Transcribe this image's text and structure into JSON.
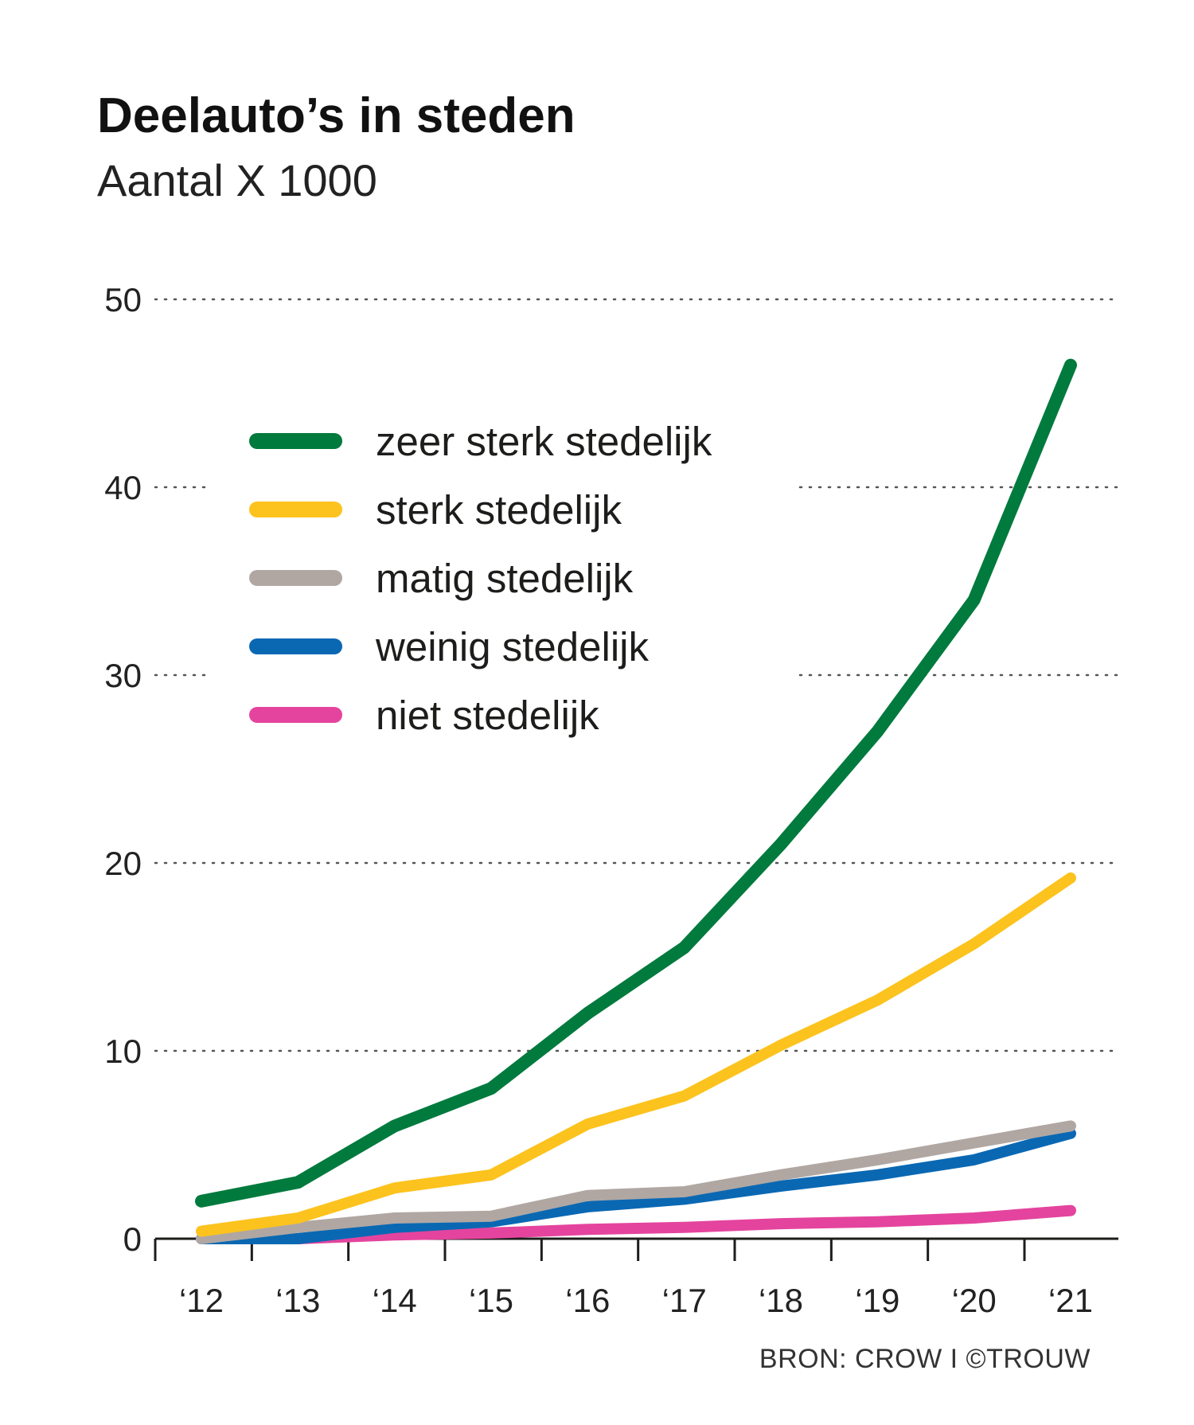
{
  "chart_data": {
    "type": "line",
    "title": "Deelauto’s in steden",
    "subtitle": "Aantal X 1000",
    "source": "BRON: CROW I ©TROUW",
    "xlabel": "",
    "ylabel": "",
    "ylim": [
      0,
      50
    ],
    "y_ticks": [
      "0",
      "10",
      "20",
      "30",
      "40",
      "50"
    ],
    "categories": [
      "‘12",
      "‘13",
      "‘14",
      "‘15",
      "‘16",
      "‘17",
      "‘18",
      "‘19",
      "‘20",
      "‘21"
    ],
    "grid": "horizontal dotted",
    "legend_position": "top-left",
    "series": [
      {
        "name": "zeer sterk stedelijk",
        "color": "#007a3d",
        "values": [
          2.0,
          3.0,
          6.0,
          8.0,
          12.0,
          15.5,
          21.0,
          27.0,
          34.0,
          46.5
        ]
      },
      {
        "name": "sterk stedelijk",
        "color": "#fcc31e",
        "values": [
          0.4,
          1.1,
          2.7,
          3.4,
          6.1,
          7.6,
          10.3,
          12.7,
          15.7,
          19.2
        ]
      },
      {
        "name": "matig stedelijk",
        "color": "#b0a7a3",
        "values": [
          0.0,
          0.6,
          1.1,
          1.2,
          2.3,
          2.5,
          3.4,
          4.2,
          5.1,
          6.0
        ]
      },
      {
        "name": "weinig stedelijk",
        "color": "#0a68b3",
        "values": [
          0.0,
          0.0,
          0.6,
          0.9,
          1.7,
          2.1,
          2.8,
          3.4,
          4.2,
          5.6
        ]
      },
      {
        "name": "niet stedelijk",
        "color": "#e4449e",
        "values": [
          0.0,
          0.0,
          0.2,
          0.3,
          0.5,
          0.6,
          0.8,
          0.9,
          1.1,
          1.5
        ]
      }
    ]
  }
}
